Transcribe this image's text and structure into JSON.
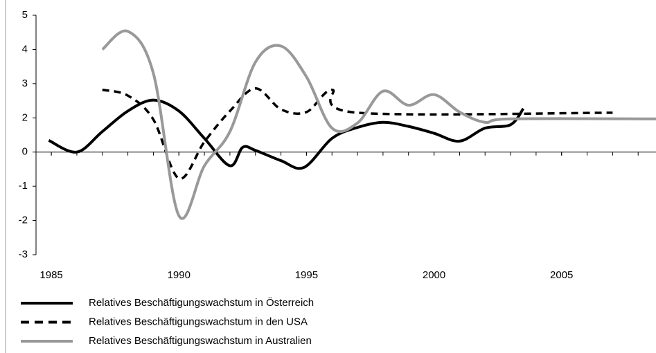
{
  "chart_data": {
    "type": "line",
    "xlim": [
      1984.4,
      2008.7
    ],
    "xticks": [
      1985,
      1990,
      1995,
      2000,
      2005
    ],
    "ylim": [
      -3,
      4
    ],
    "yticks": [
      {
        "value": 4,
        "label": "5"
      },
      {
        "value": 3,
        "label": "4"
      },
      {
        "value": 2,
        "label": "3"
      },
      {
        "value": 1,
        "label": "2"
      },
      0,
      -1,
      -2,
      -3
    ],
    "series": [
      {
        "name": "Relatives Beschäftigungswachstum in Österreich",
        "color": "#000000",
        "dash": false,
        "x": [
          1984.9,
          1986,
          1987,
          1988,
          1989,
          1990,
          1991,
          1992,
          1992.5,
          1993,
          1994,
          1994.9,
          1996,
          1997,
          1998,
          1999,
          2000,
          2001,
          2002,
          2003,
          2003.5
        ],
        "values": [
          0.34,
          0.0,
          0.6,
          1.2,
          1.52,
          1.2,
          0.4,
          -0.4,
          0.14,
          0.05,
          -0.25,
          -0.45,
          0.4,
          0.72,
          0.87,
          0.75,
          0.55,
          0.32,
          0.7,
          0.8,
          1.27
        ]
      },
      {
        "name": "Relatives Beschäftigungswachstum in den USA",
        "color": "#000000",
        "dash": true,
        "x": [
          1987,
          1988,
          1989,
          1990,
          1991,
          1992,
          1993,
          1994,
          1995,
          1996,
          1997,
          2007
        ],
        "values": [
          1.82,
          1.65,
          0.95,
          -0.77,
          0.3,
          1.2,
          1.86,
          1.25,
          1.17,
          1.82,
          1.15,
          1.15
        ]
      },
      {
        "name": "Relatives Beschäftigungswachstum in Australien",
        "color": "#999999",
        "dash": false,
        "x": [
          1987,
          1988,
          1989,
          1990,
          1991,
          1992,
          1993,
          1994,
          1995,
          1996,
          1997,
          1998,
          1999,
          2000,
          2001,
          2002,
          2003,
          2008.7
        ],
        "values": [
          3.0,
          3.53,
          2.3,
          -1.86,
          -0.4,
          0.6,
          2.63,
          3.1,
          2.2,
          0.7,
          0.85,
          1.78,
          1.37,
          1.68,
          1.17,
          0.87,
          0.97,
          0.97
        ]
      }
    ]
  }
}
